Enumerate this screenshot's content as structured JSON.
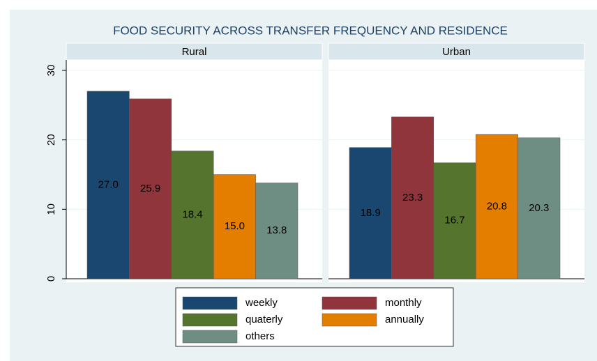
{
  "chart_data": {
    "type": "bar",
    "title": "FOOD SECURITY ACROSS TRANSFER FREQUENCY AND RESIDENCE",
    "categories": [
      "Rural",
      "Urban"
    ],
    "series": [
      {
        "name": "weekly",
        "color": "#1a476f",
        "values": [
          27.0,
          18.9
        ],
        "value_labels": [
          "27.0",
          "18.9"
        ]
      },
      {
        "name": "monthly",
        "color": "#90353b",
        "values": [
          25.9,
          23.3
        ],
        "value_labels": [
          "25.9",
          "23.3"
        ]
      },
      {
        "name": "quaterly",
        "color": "#55752f",
        "values": [
          18.4,
          16.7
        ],
        "value_labels": [
          "18.4",
          "16.7"
        ]
      },
      {
        "name": "annually",
        "color": "#e37e00",
        "values": [
          15.0,
          20.8
        ],
        "value_labels": [
          "15.0",
          "20.8"
        ]
      },
      {
        "name": "others",
        "color": "#6e8e84",
        "values": [
          13.8,
          20.3
        ],
        "value_labels": [
          "13.8",
          "20.3"
        ]
      }
    ],
    "ylim": [
      0,
      30
    ],
    "yticks": [
      0,
      10,
      20,
      30
    ],
    "grid": true
  }
}
